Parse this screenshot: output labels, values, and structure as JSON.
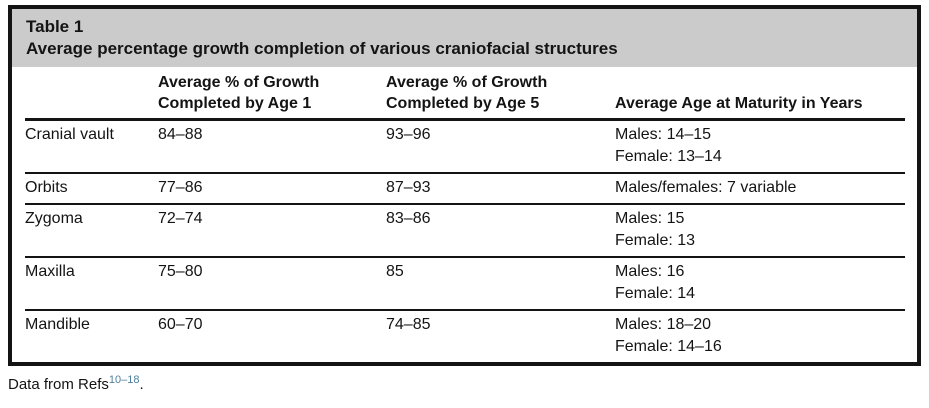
{
  "colors": {
    "caption_bg": "#cbcbcb",
    "border": "#141414",
    "text": "#141414",
    "refs_link": "#4d7f9e"
  },
  "table": {
    "label": "Table 1",
    "title": "Average percentage growth completion of various craniofacial structures",
    "headers": [
      {
        "line1": "",
        "line2": ""
      },
      {
        "line1": "Average % of Growth",
        "line2": "Completed by Age 1"
      },
      {
        "line1": "Average % of Growth",
        "line2": "Completed by Age 5"
      },
      {
        "line1": "",
        "line2": "Average Age at Maturity in Years"
      }
    ],
    "rows": [
      {
        "structure": "Cranial vault",
        "age1": "84–88",
        "age5": "93–96",
        "maturity": [
          "Males: 14–15",
          "Female: 13–14"
        ]
      },
      {
        "structure": "Orbits",
        "age1": "77–86",
        "age5": "87–93",
        "maturity": [
          "Males/females: 7 variable"
        ]
      },
      {
        "structure": "Zygoma",
        "age1": "72–74",
        "age5": "83–86",
        "maturity": [
          "Males: 15",
          "Female: 13"
        ]
      },
      {
        "structure": "Maxilla",
        "age1": "75–80",
        "age5": "85",
        "maturity": [
          "Males: 16",
          "Female: 14"
        ]
      },
      {
        "structure": "Mandible",
        "age1": "60–70",
        "age5": "74–85",
        "maturity": [
          "Males: 18–20",
          "Female: 14–16"
        ]
      }
    ]
  },
  "footnote": {
    "prefix": "Data from Refs",
    "refs": "10–18",
    "suffix": "."
  }
}
